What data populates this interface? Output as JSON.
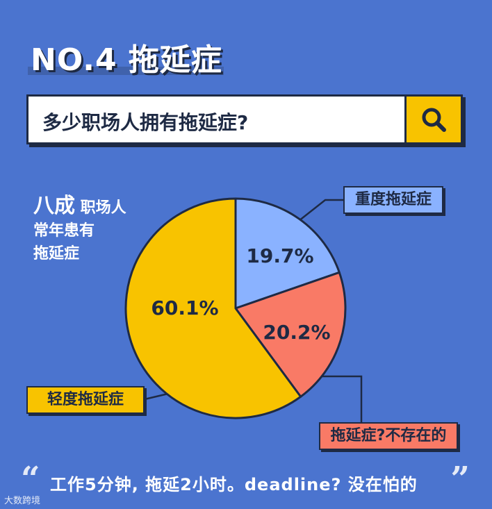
{
  "header": {
    "title": "NO.4 拖延症"
  },
  "search": {
    "query": "多少职场人拥有拖延症?",
    "icon": "search-icon"
  },
  "side_note": {
    "highlight": "八成",
    "line1": "职场人",
    "line2": "常年患有",
    "line3": "拖延症"
  },
  "chart_data": {
    "type": "pie",
    "slices": [
      {
        "label": "重度拖延症",
        "value": 19.7,
        "value_label": "19.7%",
        "color": "#8ab2ff"
      },
      {
        "label": "拖延症?不存在的",
        "value": 20.2,
        "value_label": "20.2%",
        "color": "#f97a66"
      },
      {
        "label": "轻度拖延症",
        "value": 60.1,
        "value_label": "60.1%",
        "color": "#f8c300"
      }
    ]
  },
  "quote": {
    "open": "“",
    "text": "工作5分钟, 拖延2小时。deadline? 没在怕的",
    "close": "”"
  },
  "watermark": "大数跨境"
}
